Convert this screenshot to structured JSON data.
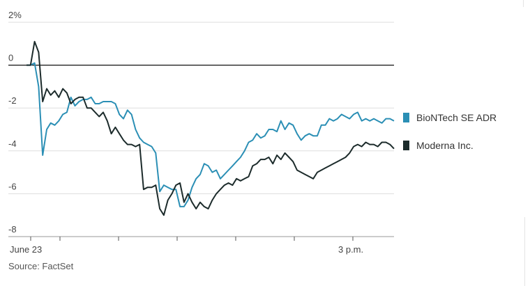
{
  "chart_data": {
    "type": "line",
    "ylim": [
      -8,
      2
    ],
    "y_ticks": [
      {
        "value": 2,
        "label": "2%"
      },
      {
        "value": 0,
        "label": "0"
      },
      {
        "value": -2,
        "label": "-2"
      },
      {
        "value": -4,
        "label": "-4"
      },
      {
        "value": -6,
        "label": "-6"
      },
      {
        "value": -8,
        "label": "-8"
      }
    ],
    "x_label_first": "June 23",
    "x_label_3pm": "3 p.m.",
    "source": "Source: FactSet",
    "series": [
      {
        "name": "BioNTech SE ADR",
        "color": "#2b8fb5",
        "values": [
          0,
          0,
          0.1,
          -1.0,
          -4.2,
          -3.0,
          -2.7,
          -2.8,
          -2.6,
          -2.3,
          -2.2,
          -1.5,
          -1.9,
          -1.7,
          -1.6,
          -1.6,
          -1.5,
          -1.8,
          -1.8,
          -1.7,
          -1.7,
          -1.7,
          -1.8,
          -2.3,
          -2.5,
          -2.1,
          -2.3,
          -3.0,
          -3.4,
          -3.6,
          -3.7,
          -3.8,
          -4.1,
          -5.9,
          -5.6,
          -5.7,
          -5.8,
          -5.8,
          -6.6,
          -6.6,
          -6.3,
          -5.7,
          -5.3,
          -5.1,
          -4.6,
          -4.7,
          -5.0,
          -4.9,
          -5.3,
          -5.1,
          -4.9,
          -4.7,
          -4.5,
          -4.3,
          -4.0,
          -3.6,
          -3.5,
          -3.2,
          -3.4,
          -3.3,
          -3.0,
          -3.0,
          -3.1,
          -2.6,
          -3.0,
          -2.7,
          -2.8,
          -3.2,
          -3.5,
          -3.3,
          -3.2,
          -3.3,
          -3.3,
          -2.8,
          -2.8,
          -2.5,
          -2.6,
          -2.5,
          -2.3,
          -2.4,
          -2.5,
          -2.3,
          -2.2,
          -2.6,
          -2.5,
          -2.6,
          -2.5,
          -2.6,
          -2.7,
          -2.5,
          -2.5,
          -2.6
        ]
      },
      {
        "name": "Moderna Inc.",
        "color": "#1c2b2b",
        "values": [
          0,
          0,
          1.1,
          0.6,
          -1.7,
          -1.1,
          -1.4,
          -1.2,
          -1.5,
          -1.1,
          -1.3,
          -1.8,
          -1.6,
          -1.5,
          -1.5,
          -2.0,
          -2.0,
          -2.2,
          -2.4,
          -2.2,
          -2.6,
          -3.2,
          -2.9,
          -3.2,
          -3.5,
          -3.7,
          -3.7,
          -3.8,
          -3.7,
          -5.8,
          -5.7,
          -5.7,
          -5.6,
          -6.7,
          -7.0,
          -6.3,
          -6.0,
          -5.6,
          -5.5,
          -6.4,
          -6.0,
          -6.4,
          -6.7,
          -6.4,
          -6.6,
          -6.7,
          -6.3,
          -6.0,
          -5.8,
          -5.6,
          -5.5,
          -5.6,
          -5.3,
          -5.4,
          -5.3,
          -5.2,
          -4.7,
          -4.6,
          -4.4,
          -4.4,
          -4.3,
          -4.6,
          -4.2,
          -4.4,
          -4.1,
          -4.3,
          -4.5,
          -4.9,
          -5.0,
          -5.1,
          -5.2,
          -5.3,
          -5.0,
          -4.9,
          -4.8,
          -4.7,
          -4.6,
          -4.5,
          -4.4,
          -4.3,
          -4.1,
          -3.8,
          -3.7,
          -3.8,
          -3.6,
          -3.7,
          -3.7,
          -3.8,
          -3.6,
          -3.6,
          -3.7,
          -3.9
        ]
      }
    ]
  }
}
